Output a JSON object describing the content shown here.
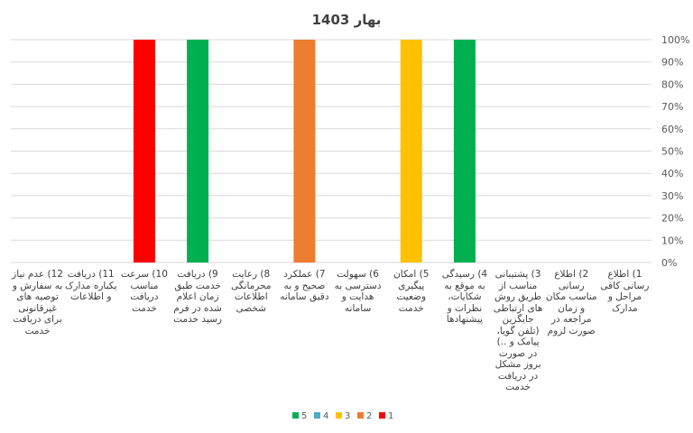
{
  "chart_data": {
    "type": "bar",
    "title": "بهار 1403",
    "categories": [
      "1) اطلاع رسانی کافی مراحل و مدارک",
      "2) اطلاع رسانی مناسب مکان و زمان مراجعه در صورت لزوم",
      "3) پشتیبانی مناسب از طریق روش های ارتباطی جایگزین (تلفن گویا، پیامک و ..) در صورت بروز مشکل در دریافت خدمت",
      "4) رسیدگی به موقع به شکایات، نظرات و پیشنهادها",
      "5) امکان پیگیری وضعیت خدمت",
      "6) سهولت دسترسی به هدایت و سامانه",
      "7) عملکرد صحیح و به دقیق سامانه",
      "8) رعایت محرمانگی اطلاعات شخصی",
      "9) دریافت خدمت طبق زمان اعلام شده در فرم رسید خدمت",
      "10) سرعت مناسب دریافت خدمت",
      "11) دریافت یکباره مدارک و اطلاعات",
      "12) عدم نیاز به سفارش و توصیه های غیرقانونی برای دریافت خدمت"
    ],
    "series": [
      {
        "name": "1",
        "color": "#ff0000",
        "values": [
          0,
          0,
          0,
          0,
          0,
          0,
          0,
          0,
          0,
          100,
          0,
          0
        ]
      },
      {
        "name": "2",
        "color": "#ed7d31",
        "values": [
          0,
          0,
          0,
          0,
          0,
          0,
          100,
          0,
          0,
          0,
          0,
          0
        ]
      },
      {
        "name": "3",
        "color": "#ffc000",
        "values": [
          0,
          0,
          0,
          0,
          100,
          0,
          0,
          0,
          0,
          0,
          0,
          0
        ]
      },
      {
        "name": "4",
        "color": "#4bacc6",
        "values": [
          0,
          0,
          0,
          0,
          0,
          0,
          0,
          0,
          0,
          0,
          0,
          0
        ]
      },
      {
        "name": "5",
        "color": "#00b050",
        "values": [
          0,
          0,
          0,
          100,
          0,
          0,
          0,
          0,
          100,
          0,
          0,
          0
        ]
      }
    ],
    "stacked": true,
    "ylim": [
      0,
      100
    ],
    "yticks": [
      "0%",
      "10%",
      "20%",
      "30%",
      "40%",
      "50%",
      "60%",
      "70%",
      "80%",
      "90%",
      "100%"
    ],
    "y_axis_side": "right",
    "x_axis_direction": "right-to-left",
    "grid": true,
    "legend_position": "bottom",
    "legend_order": [
      "5",
      "4",
      "3",
      "2",
      "1"
    ]
  }
}
